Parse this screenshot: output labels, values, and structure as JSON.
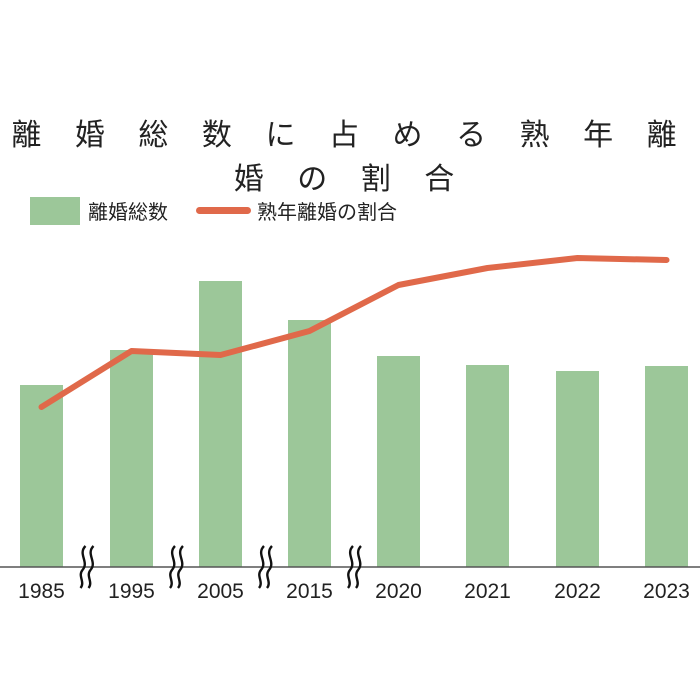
{
  "title": "離 婚 総 数 に 占 め る 熟 年 離 婚 の 割 合",
  "legend": {
    "bar_label": "離婚総数",
    "line_label": "熟年離婚の割合"
  },
  "colors": {
    "bar": "#9cc799",
    "line": "#e0694a",
    "axis": "#555555"
  },
  "chart_data": {
    "type": "bar+line",
    "title": "離婚総数に占める熟年離婚の割合",
    "categories": [
      "1985",
      "1995",
      "2005",
      "2015",
      "2020",
      "2021",
      "2022",
      "2023"
    ],
    "series": [
      {
        "name": "離婚総数",
        "type": "bar",
        "values": [
          182,
          217,
          286,
          247,
          211,
          202,
          196,
          201
        ],
        "note": "relative bar heights (px), no axis shown"
      },
      {
        "name": "熟年離婚の割合",
        "type": "line",
        "values": [
          160,
          216,
          212,
          236,
          282,
          299,
          309,
          307
        ],
        "note": "relative line heights (px), no axis shown"
      }
    ],
    "axis_breaks_after": [
      "1985",
      "1995",
      "2005",
      "2015"
    ],
    "xlabel": "",
    "ylabel": "",
    "grid": false,
    "legend_position": "top-left"
  }
}
